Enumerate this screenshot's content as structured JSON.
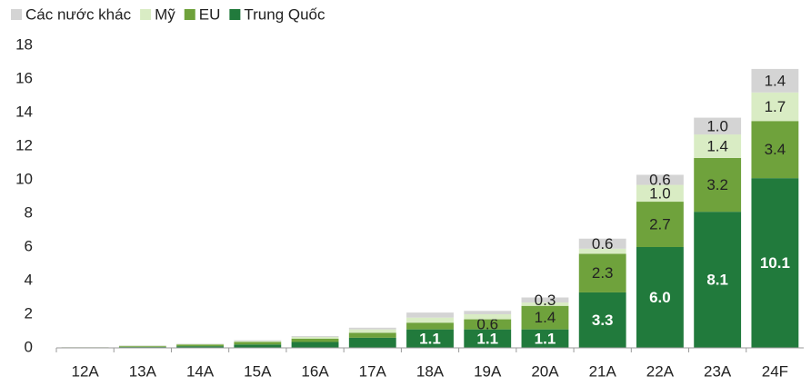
{
  "chart_data": {
    "type": "stacked_bar",
    "categories": [
      "12A",
      "13A",
      "14A",
      "15A",
      "16A",
      "17A",
      "18A",
      "19A",
      "20A",
      "21A",
      "22A",
      "23A",
      "24F"
    ],
    "series": [
      {
        "name": "Trung Quốc",
        "color": "#217a3c",
        "values": [
          0.02,
          0.05,
          0.1,
          0.2,
          0.35,
          0.6,
          1.1,
          1.1,
          1.1,
          3.3,
          6.0,
          8.1,
          10.1
        ],
        "value_labels": [
          null,
          null,
          null,
          null,
          null,
          null,
          "1.1",
          "1.1",
          "1.1",
          "3.3",
          "6.0",
          "8.1",
          "10.1"
        ]
      },
      {
        "name": "EU",
        "color": "#6fa23c",
        "values": [
          0.01,
          0.05,
          0.1,
          0.15,
          0.2,
          0.3,
          0.4,
          0.6,
          1.4,
          2.3,
          2.7,
          3.2,
          3.4
        ],
        "value_labels": [
          null,
          null,
          null,
          null,
          null,
          null,
          null,
          "0.6",
          "1.4",
          "2.3",
          "2.7",
          "3.2",
          "3.4"
        ]
      },
      {
        "name": "Mỹ",
        "color": "#d9ecc4",
        "values": [
          0.01,
          0.03,
          0.03,
          0.05,
          0.1,
          0.2,
          0.3,
          0.3,
          0.2,
          0.3,
          1.0,
          1.4,
          1.7
        ],
        "value_labels": [
          null,
          null,
          null,
          null,
          null,
          null,
          null,
          null,
          null,
          null,
          "1.0",
          "1.4",
          "1.7"
        ]
      },
      {
        "name": "Các nước khác",
        "color": "#d4d4d4",
        "values": [
          0.01,
          0.02,
          0.02,
          0.05,
          0.05,
          0.1,
          0.3,
          0.2,
          0.3,
          0.6,
          0.6,
          1.0,
          1.4
        ],
        "value_labels": [
          null,
          null,
          null,
          null,
          null,
          null,
          null,
          null,
          "0.3",
          "0.6",
          "0.6",
          "1.0",
          "1.4"
        ]
      }
    ],
    "ylim": [
      0,
      18
    ],
    "yticks": [
      0,
      2,
      4,
      6,
      8,
      10,
      12,
      14,
      16,
      18
    ],
    "legend": "top-left"
  }
}
